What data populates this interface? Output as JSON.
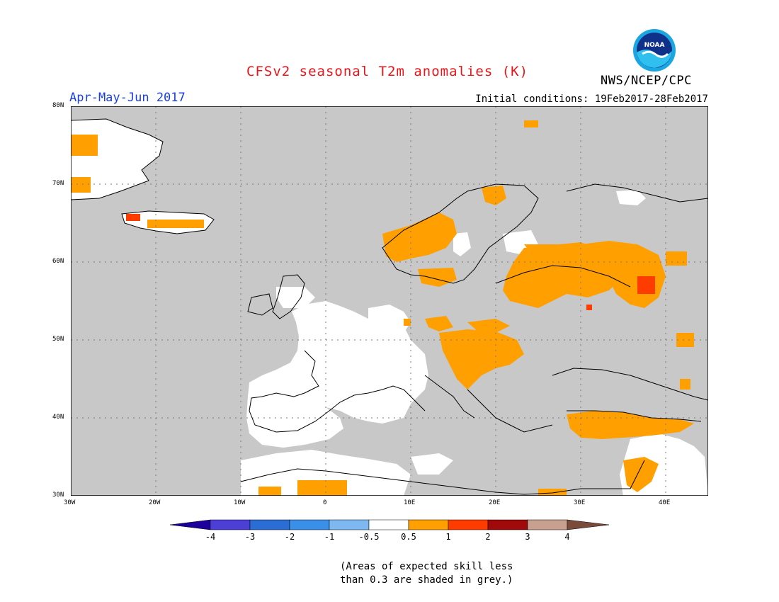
{
  "title": "CFSv2 seasonal T2m anomalies (K)",
  "period": "Apr-May-Jun 2017",
  "initial_conditions": "Initial conditions: 19Feb2017-28Feb2017",
  "agency": "NWS/NCEP/CPC",
  "logo_text": "NOAA",
  "footnote_line1": "(Areas of expected skill less",
  "footnote_line2": "than 0.3 are shaded in grey.)",
  "lat_labels": [
    "80N",
    "70N",
    "60N",
    "50N",
    "40N",
    "30N"
  ],
  "lon_labels": [
    "30W",
    "20W",
    "10W",
    "0",
    "10E",
    "20E",
    "30E",
    "40E"
  ],
  "colors": {
    "no_skill_grey": "#c8c8c8",
    "warm_0_5_to_1": "#ffa000",
    "warm_1_to_2": "#ff3c00",
    "near_normal": "#ffffff"
  },
  "colorbar": {
    "labels": [
      "-4",
      "-3",
      "-2",
      "-1",
      "-0.5",
      "0.5",
      "1",
      "2",
      "3",
      "4"
    ],
    "colors": [
      "#1c009c",
      "#4c3fd6",
      "#2a6dd4",
      "#3a8fe8",
      "#7db8f0",
      "#ffffff",
      "#ffa000",
      "#ff3c00",
      "#a00a0a",
      "#c8a090",
      "#7a4a3a"
    ]
  }
}
